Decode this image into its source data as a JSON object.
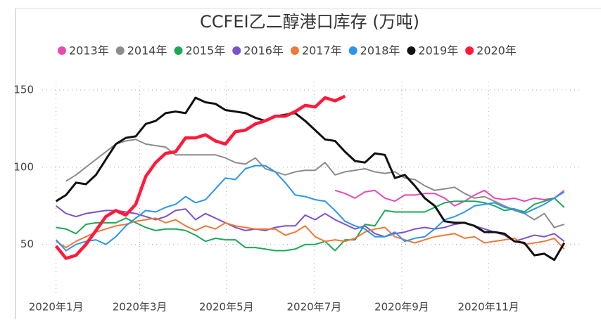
{
  "chart_data": {
    "type": "line",
    "title": "CCFEI乙二醇港口库存 (万吨)",
    "x": [
      0,
      1,
      2,
      3,
      4,
      5,
      6,
      7,
      8,
      9,
      10,
      11,
      12,
      13,
      14,
      15,
      16,
      17,
      18,
      19,
      20,
      21,
      22,
      23,
      24,
      25,
      26,
      27,
      28,
      29,
      30,
      31,
      32,
      33,
      34,
      35,
      36,
      37,
      38,
      39,
      40,
      41,
      42,
      43,
      44,
      45,
      46,
      47,
      48,
      49,
      50,
      51
    ],
    "xlim": [
      -4,
      52.5
    ],
    "xticks": [
      {
        "value": 0,
        "label": "2020年1月"
      },
      {
        "value": 8.4,
        "label": "2020年3月"
      },
      {
        "value": 17.1,
        "label": "2020年5月"
      },
      {
        "value": 25.9,
        "label": "2020年7月"
      },
      {
        "value": 34.7,
        "label": "2020年9月"
      },
      {
        "value": 43.4,
        "label": "2020年11月"
      }
    ],
    "ylim": [
      18,
      160
    ],
    "yticks": [
      50,
      100,
      150
    ],
    "grid": true,
    "series": [
      {
        "name": "2013年",
        "color": "#e84ab5",
        "values": [
          null,
          null,
          null,
          null,
          null,
          null,
          null,
          null,
          null,
          null,
          null,
          null,
          null,
          null,
          null,
          null,
          null,
          null,
          null,
          null,
          null,
          null,
          null,
          null,
          null,
          null,
          null,
          null,
          85,
          83,
          80,
          84,
          85,
          80,
          78,
          82,
          82,
          83,
          83,
          80,
          75,
          78,
          82,
          85,
          80,
          79,
          80,
          78,
          80,
          79,
          80,
          85
        ]
      },
      {
        "name": "2014年",
        "color": "#8c8c8c",
        "values": [
          null,
          91,
          95,
          100,
          105,
          110,
          115,
          117,
          118,
          115,
          114,
          113,
          108,
          108,
          108,
          108,
          108,
          106,
          103,
          102,
          106,
          99,
          97,
          95,
          97,
          98,
          98,
          103,
          95,
          97,
          98,
          99,
          97,
          96,
          97,
          93,
          92,
          88,
          85,
          86,
          87,
          83,
          80,
          81,
          78,
          75,
          72,
          70,
          66,
          70,
          61,
          63
        ]
      },
      {
        "name": "2015年",
        "color": "#1aaa55",
        "values": [
          61,
          60,
          57,
          63,
          64,
          64,
          64,
          67,
          64,
          61,
          59,
          60,
          60,
          59,
          56,
          52,
          54,
          53,
          53,
          48,
          48,
          47,
          46,
          46,
          47,
          50,
          50,
          52,
          46,
          53,
          53,
          63,
          62,
          72,
          71,
          71,
          71,
          71,
          74,
          77,
          78,
          78,
          78,
          77,
          75,
          72,
          73,
          71,
          76,
          78,
          80,
          74
        ]
      },
      {
        "name": "2016年",
        "color": "#7b52c9",
        "values": [
          75,
          70,
          68,
          70,
          71,
          72,
          72,
          71,
          70,
          68,
          66,
          68,
          72,
          73,
          66,
          70,
          67,
          64,
          61,
          59,
          60,
          59,
          61,
          62,
          62,
          69,
          66,
          70,
          66,
          63,
          60,
          62,
          57,
          55,
          57,
          58,
          60,
          61,
          60,
          61,
          63,
          64,
          62,
          60,
          58,
          56,
          52,
          54,
          56,
          55,
          57,
          52
        ]
      },
      {
        "name": "2017年",
        "color": "#f07838",
        "values": [
          52,
          48,
          52,
          55,
          58,
          60,
          62,
          63,
          65,
          66,
          67,
          64,
          66,
          62,
          59,
          62,
          60,
          64,
          62,
          61,
          60,
          60,
          60,
          56,
          58,
          62,
          55,
          52,
          53,
          52,
          54,
          58,
          60,
          61,
          55,
          53,
          51,
          53,
          55,
          56,
          57,
          54,
          55,
          51,
          52,
          53,
          54,
          50,
          51,
          52,
          54,
          47
        ]
      },
      {
        "name": "2018年",
        "color": "#2b95ef",
        "values": [
          53,
          46,
          50,
          52,
          53,
          50,
          55,
          62,
          67,
          72,
          71,
          74,
          76,
          81,
          77,
          79,
          86,
          93,
          92,
          99,
          101,
          101,
          97,
          90,
          82,
          81,
          79,
          78,
          72,
          65,
          62,
          60,
          55,
          55,
          58,
          52,
          54,
          55,
          60,
          66,
          68,
          71,
          75,
          76,
          77,
          74,
          73,
          70,
          73,
          76,
          80,
          84
        ]
      },
      {
        "name": "2019年",
        "color": "#111111",
        "values": [
          78,
          82,
          90,
          89,
          95,
          105,
          115,
          119,
          120,
          128,
          130,
          135,
          136,
          135,
          145,
          142,
          141,
          137,
          136,
          135,
          132,
          130,
          133,
          134,
          135,
          130,
          124,
          118,
          117,
          110,
          104,
          103,
          109,
          108,
          93,
          95,
          88,
          80,
          75,
          65,
          64,
          64,
          62,
          58,
          58,
          57,
          52,
          51,
          43,
          44,
          40,
          51
        ]
      },
      {
        "name": "2020年",
        "color": "#ff1a3a",
        "values": [
          49,
          41,
          43,
          50,
          59,
          68,
          72,
          69,
          76,
          94,
          103,
          109,
          110,
          119,
          119,
          121,
          117,
          115,
          123,
          124,
          128,
          130,
          133,
          133,
          136,
          140,
          139,
          145,
          143,
          146,
          null,
          null,
          null,
          null,
          null,
          null,
          null,
          null,
          null,
          null,
          null,
          null,
          null,
          null,
          null,
          null,
          null,
          null,
          null,
          null,
          null,
          null
        ]
      }
    ]
  }
}
